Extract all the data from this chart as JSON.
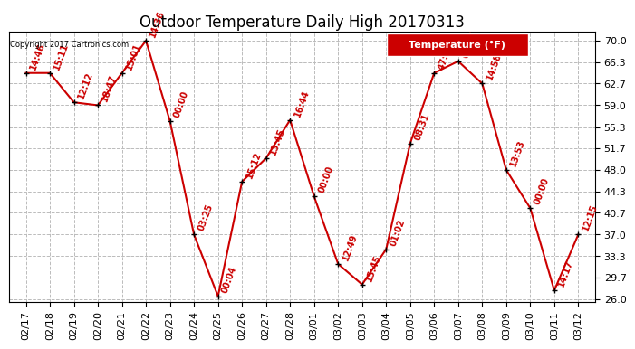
{
  "title": "Outdoor Temperature Daily High 20170313",
  "copyright": "Copyright 2017 Cartronics.com",
  "legend_label": "Temperature (°F)",
  "dates": [
    "02/17",
    "02/18",
    "02/19",
    "02/20",
    "02/21",
    "02/22",
    "02/23",
    "02/24",
    "02/25",
    "02/26",
    "02/27",
    "02/28",
    "03/01",
    "03/02",
    "03/03",
    "03/04",
    "03/05",
    "03/06",
    "03/07",
    "03/08",
    "03/09",
    "03/10",
    "03/11",
    "03/12"
  ],
  "temps": [
    64.5,
    64.5,
    59.5,
    59.0,
    64.5,
    70.0,
    56.3,
    37.0,
    26.5,
    46.0,
    50.0,
    56.5,
    43.5,
    32.0,
    28.5,
    34.5,
    52.5,
    64.5,
    66.5,
    62.7,
    48.0,
    41.5,
    27.5,
    37.0
  ],
  "time_labels": [
    "14:46",
    "15:11",
    "12:12",
    "18:47",
    "15:01",
    "14:36",
    "00:00",
    "03:25",
    "00:04",
    "15:12",
    "13:45",
    "16:44",
    "00:00",
    "12:49",
    "15:45",
    "01:02",
    "08:31",
    "47:22",
    "00:27",
    "14:58",
    "13:53",
    "00:00",
    "14:17",
    "12:15"
  ],
  "yticks": [
    26.0,
    29.7,
    33.3,
    37.0,
    40.7,
    44.3,
    48.0,
    51.7,
    55.3,
    59.0,
    62.7,
    66.3,
    70.0
  ],
  "ylim": [
    25.5,
    71.5
  ],
  "xlim": [
    -0.7,
    23.7
  ],
  "line_color": "#cc0000",
  "marker_color": "#000000",
  "label_color": "#cc0000",
  "background_color": "#ffffff",
  "grid_color": "#bbbbbb",
  "title_fontsize": 12,
  "label_fontsize": 7,
  "tick_fontsize": 8,
  "copyright_fontsize": 6,
  "legend_fontsize": 8
}
